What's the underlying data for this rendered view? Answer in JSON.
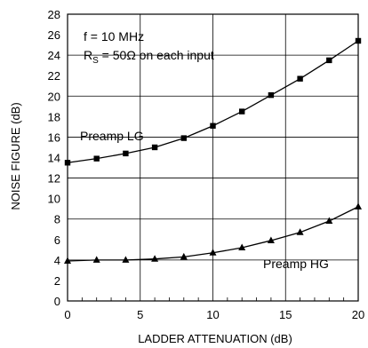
{
  "chart_data": {
    "type": "line",
    "xlabel": "LADDER ATTENUATION (dB)",
    "ylabel": "NOISE FIGURE  (dB)",
    "xlim": [
      0,
      20
    ],
    "ylim": [
      0,
      28
    ],
    "x_ticks": [
      "0",
      "5",
      "10",
      "15",
      "20"
    ],
    "y_ticks": [
      "0",
      "2",
      "4",
      "6",
      "8",
      "10",
      "12",
      "14",
      "16",
      "18",
      "20",
      "22",
      "24",
      "26",
      "28"
    ],
    "grid": true,
    "annotations": {
      "line1": "f = 10 MHz",
      "line2_prefix": "R",
      "line2_sub": "S",
      "line2_suffix": " = 50Ω on each input"
    },
    "series": [
      {
        "name": "Preamp LG",
        "marker": "square",
        "x": [
          0,
          2,
          4,
          6,
          8,
          10,
          12,
          14,
          16,
          18,
          20
        ],
        "y": [
          13.5,
          13.9,
          14.4,
          15.0,
          15.9,
          17.1,
          18.5,
          20.1,
          21.7,
          23.5,
          25.4
        ]
      },
      {
        "name": "Preamp HG",
        "marker": "triangle",
        "x": [
          0,
          2,
          4,
          6,
          8,
          10,
          12,
          14,
          16,
          18,
          20
        ],
        "y": [
          3.9,
          4.0,
          4.0,
          4.1,
          4.3,
          4.7,
          5.2,
          5.9,
          6.7,
          7.8,
          9.2
        ]
      }
    ]
  }
}
